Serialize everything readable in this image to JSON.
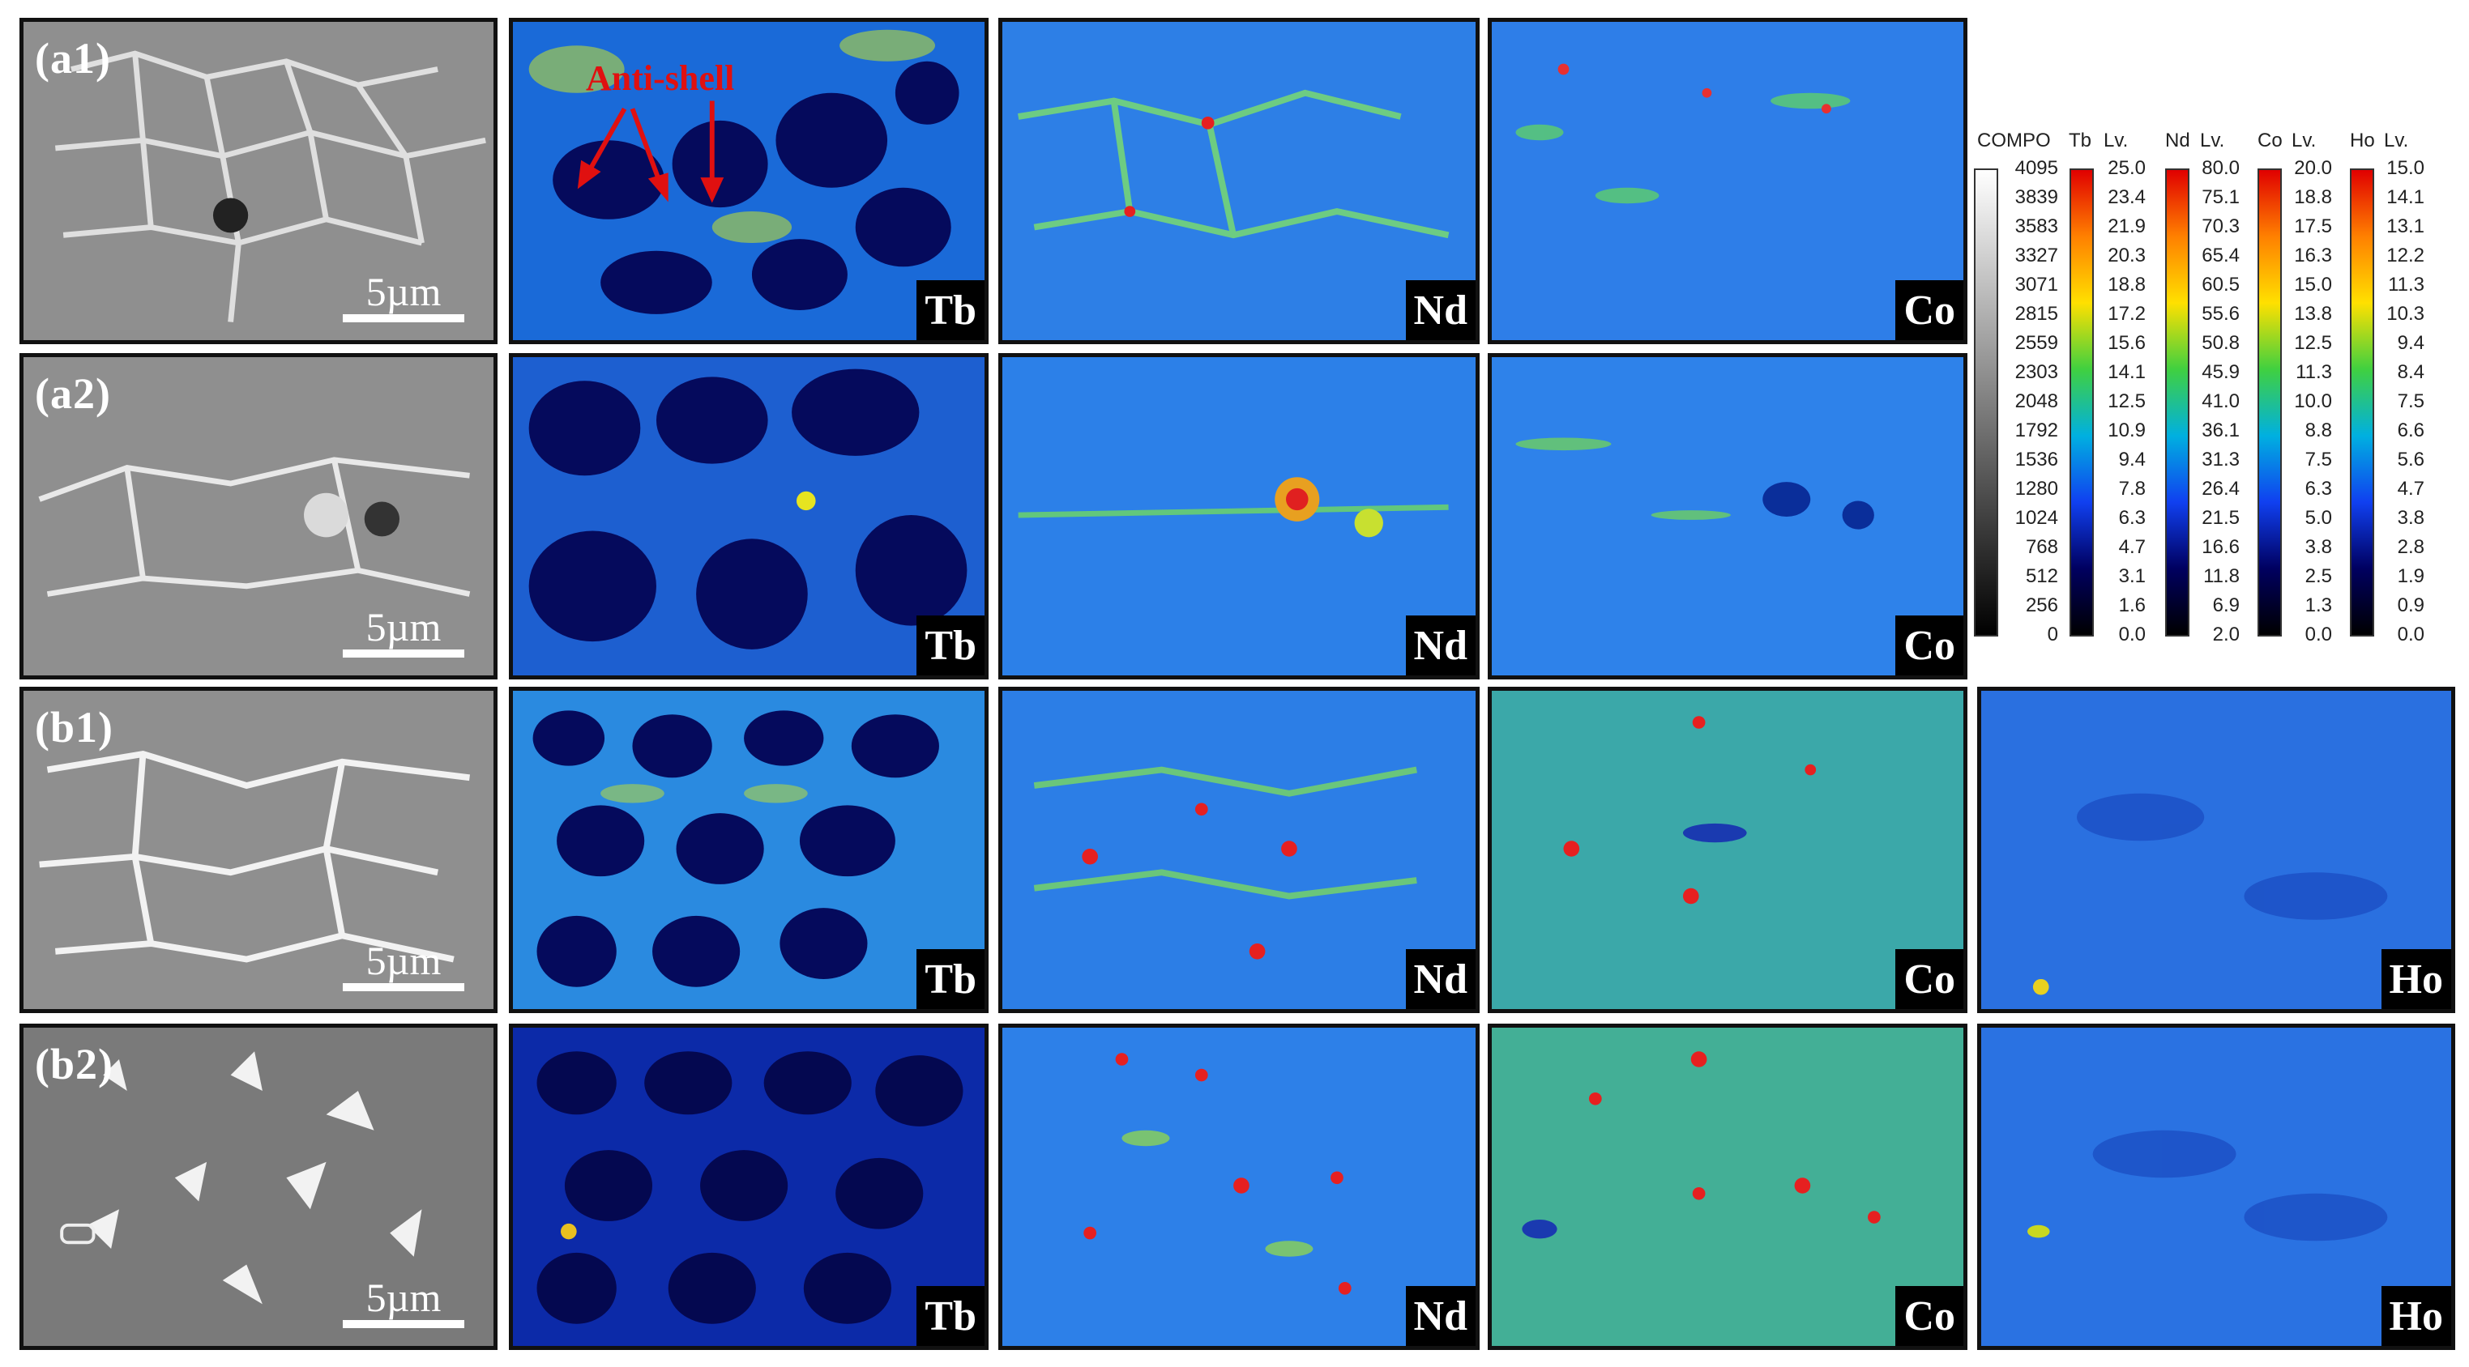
{
  "rows": [
    {
      "label": "(a1)",
      "scale": "5µm",
      "maps": [
        "Tb",
        "Nd",
        "Co"
      ],
      "annotation": "Anti-shell"
    },
    {
      "label": "(a2)",
      "scale": "5µm",
      "maps": [
        "Tb",
        "Nd",
        "Co"
      ]
    },
    {
      "label": "(b1)",
      "scale": "5µm",
      "maps": [
        "Tb",
        "Nd",
        "Co",
        "Ho"
      ]
    },
    {
      "label": "(b2)",
      "scale": "5µm",
      "maps": [
        "Tb",
        "Nd",
        "Co",
        "Ho"
      ]
    }
  ],
  "legend": {
    "compo": {
      "title": "COMPO",
      "ticks": [
        "4095",
        "3839",
        "3583",
        "3327",
        "3071",
        "2815",
        "2559",
        "2303",
        "2048",
        "1792",
        "1536",
        "1280",
        "1024",
        "768",
        "512",
        "256",
        "0"
      ]
    },
    "tb": {
      "title": "Tb",
      "unit": "Lv.",
      "ticks": [
        "25.0",
        "23.4",
        "21.9",
        "20.3",
        "18.8",
        "17.2",
        "15.6",
        "14.1",
        "12.5",
        "10.9",
        "9.4",
        "7.8",
        "6.3",
        "4.7",
        "3.1",
        "1.6",
        "0.0"
      ]
    },
    "nd": {
      "title": "Nd",
      "unit": "Lv.",
      "ticks": [
        "80.0",
        "75.1",
        "70.3",
        "65.4",
        "60.5",
        "55.6",
        "50.8",
        "45.9",
        "41.0",
        "36.1",
        "31.3",
        "26.4",
        "21.5",
        "16.6",
        "11.8",
        "6.9",
        "2.0"
      ]
    },
    "co": {
      "title": "Co",
      "unit": "Lv.",
      "ticks": [
        "20.0",
        "18.8",
        "17.5",
        "16.3",
        "15.0",
        "13.8",
        "12.5",
        "11.3",
        "10.0",
        "8.8",
        "7.5",
        "6.3",
        "5.0",
        "3.8",
        "2.5",
        "1.3",
        "0.0"
      ]
    },
    "ho": {
      "title": "Ho",
      "unit": "Lv.",
      "ticks": [
        "15.0",
        "14.1",
        "13.1",
        "12.2",
        "11.3",
        "10.3",
        "9.4",
        "8.4",
        "7.5",
        "6.6",
        "5.6",
        "4.7",
        "3.8",
        "2.8",
        "1.9",
        "0.9",
        "0.0"
      ]
    }
  },
  "colors": {
    "annotation": "#e01010",
    "map_bg": "#0a2a8a",
    "bse_bg": "#8f8f8f"
  }
}
